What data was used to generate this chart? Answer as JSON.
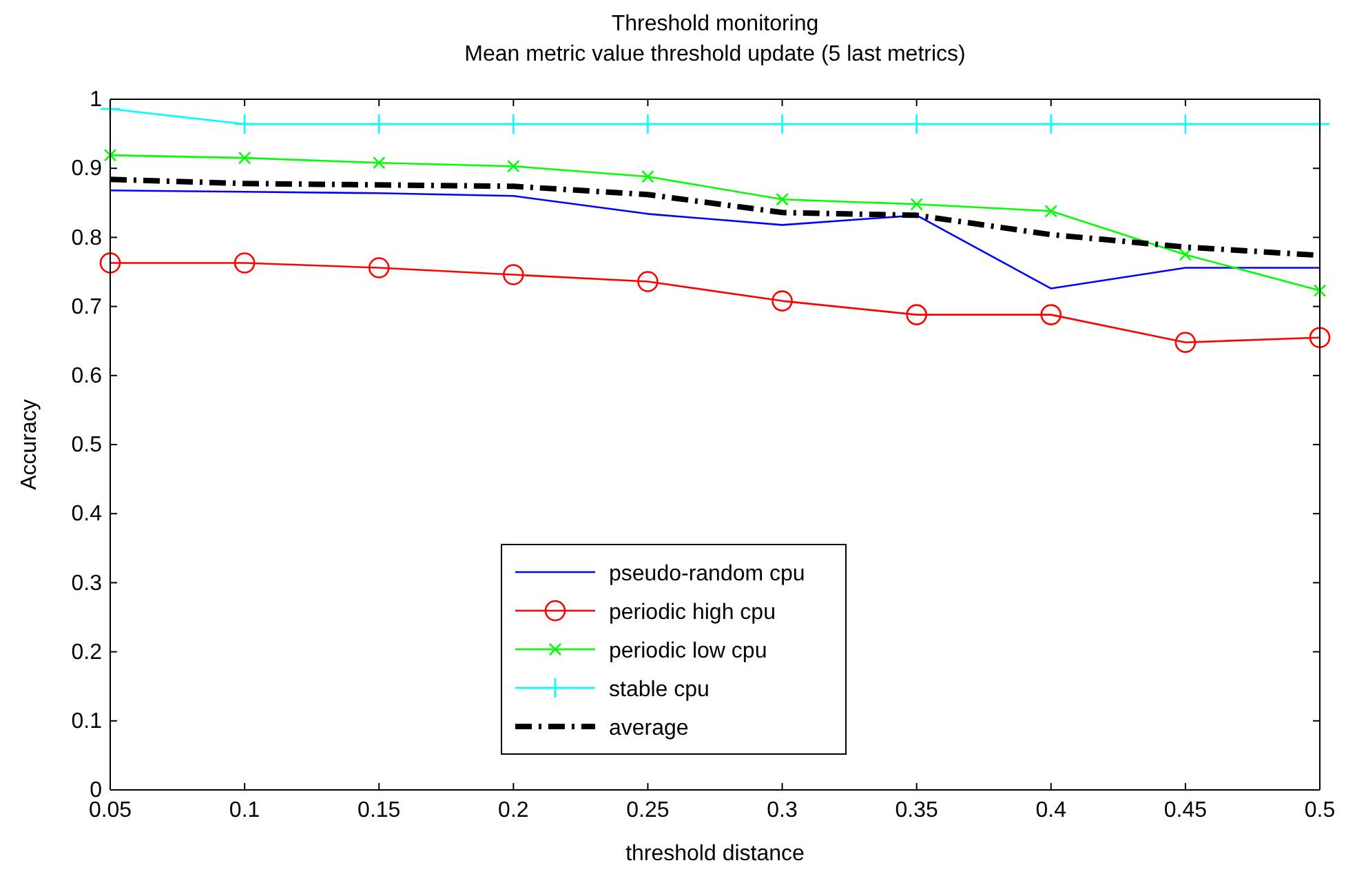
{
  "chart_data": {
    "type": "line",
    "title": "Threshold monitoring",
    "subtitle": "Mean metric value threshold update (5 last metrics)",
    "xlabel": "threshold distance",
    "ylabel": "Accuracy",
    "x": [
      0.05,
      0.1,
      0.15,
      0.2,
      0.25,
      0.3,
      0.35,
      0.4,
      0.45,
      0.5
    ],
    "series": [
      {
        "name": "pseudo-random cpu",
        "color": "#0000ff",
        "marker": "none",
        "line_style": "solid",
        "values": [
          0.868,
          0.866,
          0.864,
          0.86,
          0.834,
          0.818,
          0.832,
          0.726,
          0.756,
          0.756
        ]
      },
      {
        "name": "periodic high cpu",
        "color": "#ff0000",
        "marker": "circle",
        "line_style": "solid",
        "values": [
          0.763,
          0.763,
          0.756,
          0.746,
          0.736,
          0.708,
          0.688,
          0.688,
          0.648,
          0.655
        ]
      },
      {
        "name": "periodic low cpu",
        "color": "#00ff00",
        "marker": "cross",
        "line_style": "solid",
        "values": [
          0.919,
          0.915,
          0.908,
          0.903,
          0.888,
          0.855,
          0.848,
          0.838,
          0.775,
          0.723
        ]
      },
      {
        "name": "stable cpu",
        "color": "#00ffff",
        "marker": "plus",
        "line_style": "solid",
        "values": [
          0.986,
          0.964,
          0.964,
          0.964,
          0.964,
          0.964,
          0.964,
          0.964,
          0.964,
          0.964
        ]
      },
      {
        "name": "average",
        "color": "#000000",
        "marker": "none",
        "line_style": "dashdot",
        "values": [
          0.884,
          0.878,
          0.876,
          0.874,
          0.862,
          0.836,
          0.832,
          0.804,
          0.786,
          0.774
        ]
      }
    ],
    "xlim": [
      0.05,
      0.5
    ],
    "xticks": [
      0.05,
      0.1,
      0.15,
      0.2,
      0.25,
      0.3,
      0.35,
      0.4,
      0.45,
      0.5
    ],
    "ylim": [
      0,
      1
    ],
    "yticks": [
      0,
      0.1,
      0.2,
      0.3,
      0.4,
      0.5,
      0.6,
      0.7,
      0.8,
      0.9,
      1
    ],
    "grid": false,
    "legend": "bottom"
  }
}
